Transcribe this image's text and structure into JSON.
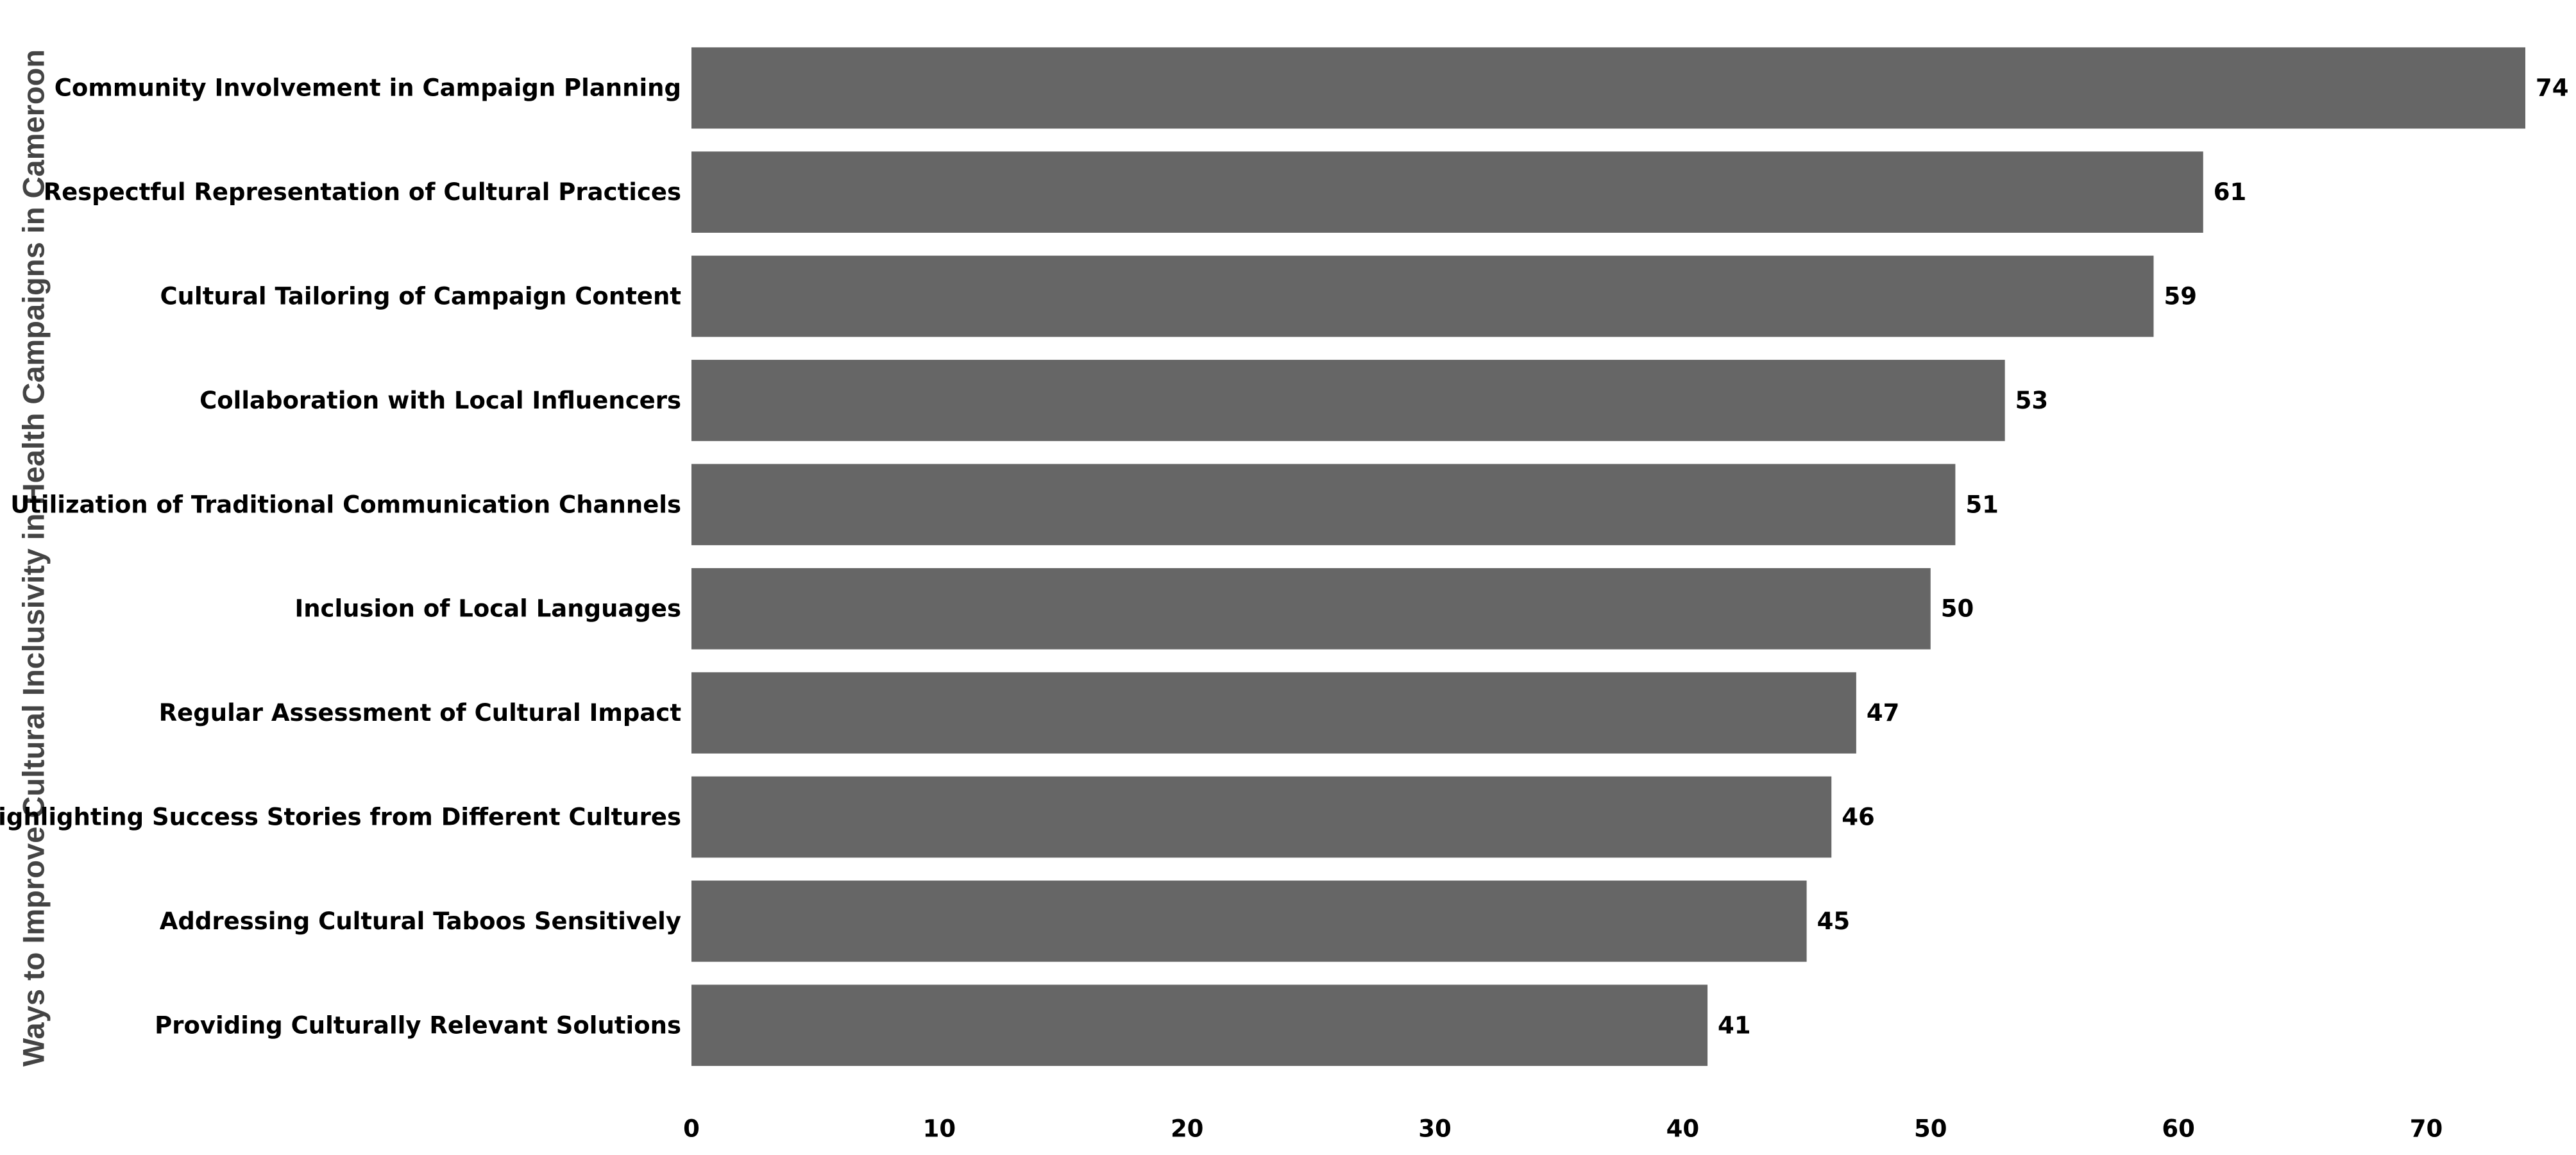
{
  "chart_data": {
    "type": "bar",
    "orientation": "horizontal",
    "y_axis_title": "Ways to Improve Cultural Inclusivity in Health Campaigns in Cameroon",
    "categories": [
      "Community Involvement in Campaign Planning",
      "Respectful Representation of Cultural Practices",
      "Cultural Tailoring of Campaign Content",
      "Collaboration with Local Influencers",
      "Utilization of Traditional Communication Channels",
      "Inclusion of Local Languages",
      "Regular Assessment of Cultural Impact",
      "Highlighting Success Stories from Different Cultures",
      "Addressing Cultural Taboos Sensitively",
      "Providing Culturally Relevant Solutions"
    ],
    "values": [
      74,
      61,
      59,
      53,
      51,
      50,
      47,
      46,
      45,
      41
    ],
    "color": "#666666",
    "xlim": [
      0,
      74
    ],
    "xticks": [
      0,
      10,
      20,
      30,
      40,
      50,
      60,
      70
    ],
    "grid": false
  }
}
